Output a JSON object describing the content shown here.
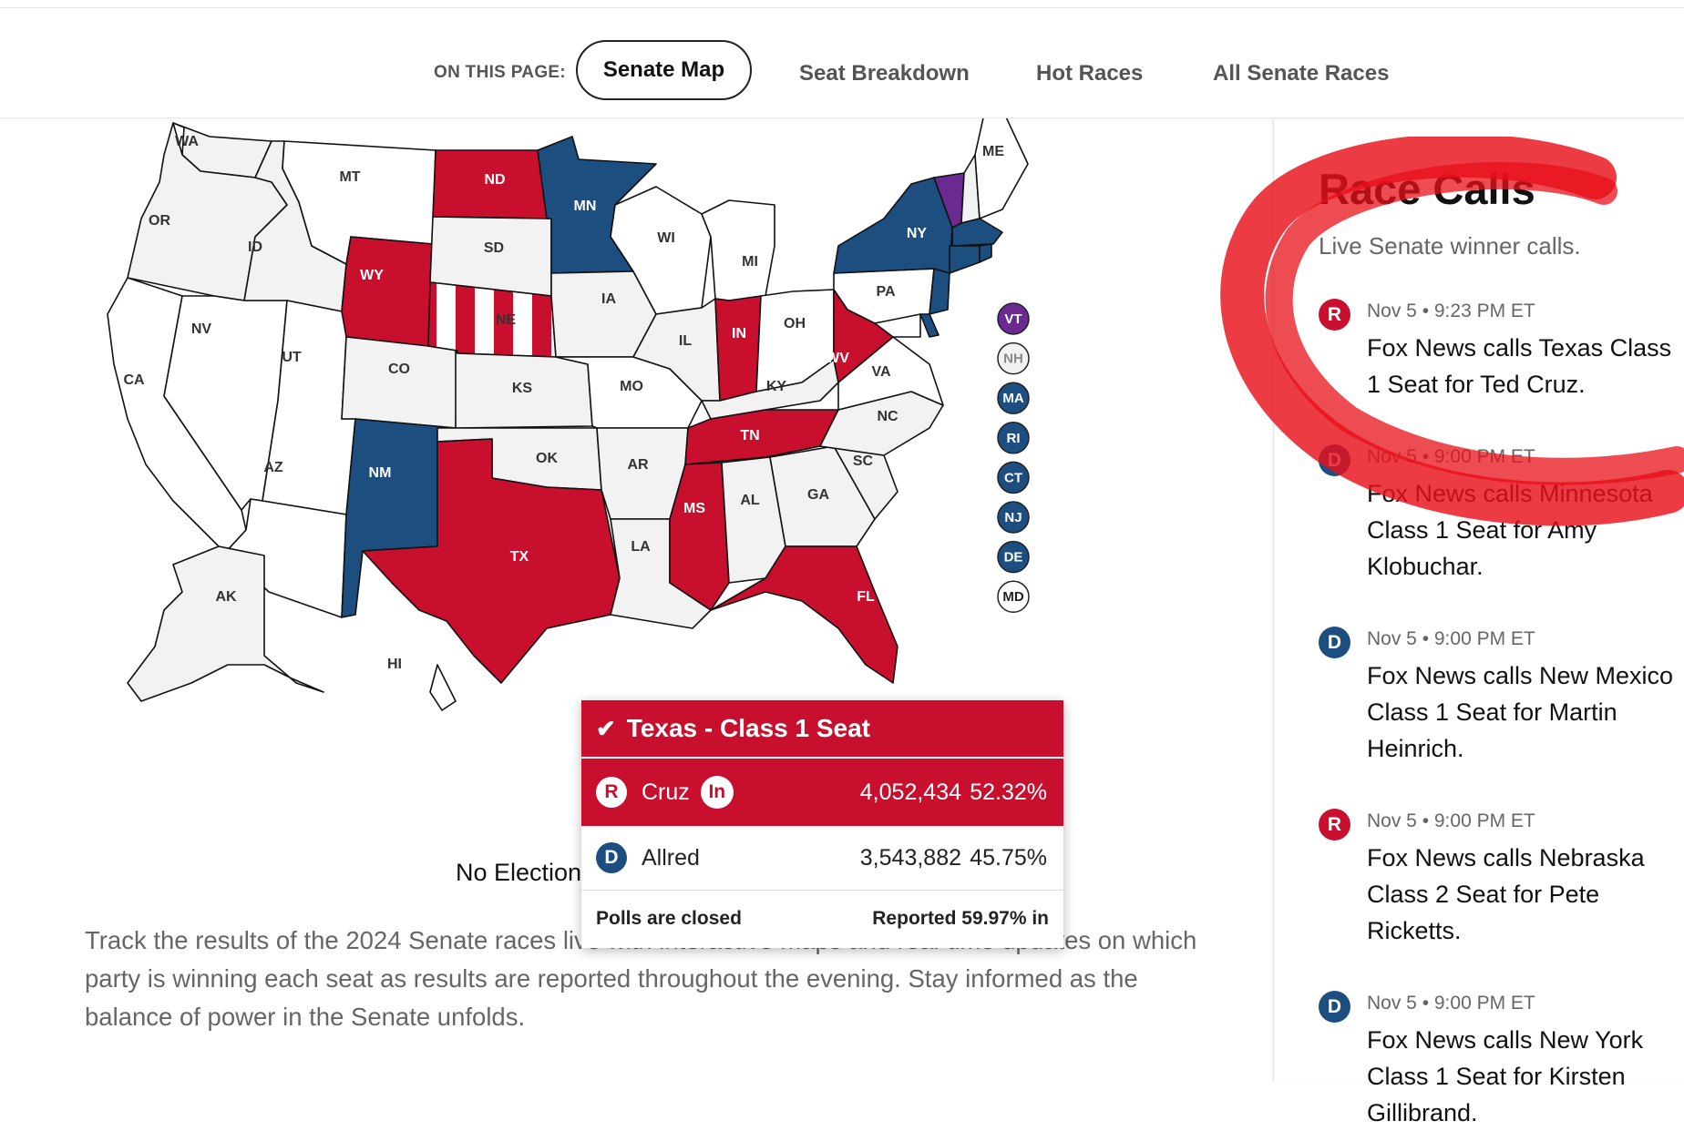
{
  "nav": {
    "label": "ON THIS PAGE:",
    "items": [
      "Senate Map",
      "Seat Breakdown",
      "Hot Races",
      "All Senate Races"
    ],
    "active": "Senate Map"
  },
  "colors": {
    "republican": "#c8102e",
    "democrat": "#1d4e80",
    "independent": "#6a2a91",
    "no_election": "#f2f2f2",
    "not_called": "#ffffff"
  },
  "map": {
    "states": [
      {
        "abbr": "WA",
        "status": "no-election"
      },
      {
        "abbr": "OR",
        "status": "no-election"
      },
      {
        "abbr": "CA",
        "status": "not-called"
      },
      {
        "abbr": "ID",
        "status": "no-election"
      },
      {
        "abbr": "NV",
        "status": "not-called"
      },
      {
        "abbr": "MT",
        "status": "not-called"
      },
      {
        "abbr": "WY",
        "status": "republican"
      },
      {
        "abbr": "UT",
        "status": "not-called"
      },
      {
        "abbr": "AZ",
        "status": "not-called"
      },
      {
        "abbr": "CO",
        "status": "no-election"
      },
      {
        "abbr": "NM",
        "status": "democrat"
      },
      {
        "abbr": "ND",
        "status": "republican"
      },
      {
        "abbr": "SD",
        "status": "no-election"
      },
      {
        "abbr": "NE",
        "status": "republican-partial"
      },
      {
        "abbr": "KS",
        "status": "no-election"
      },
      {
        "abbr": "OK",
        "status": "no-election"
      },
      {
        "abbr": "TX",
        "status": "republican"
      },
      {
        "abbr": "MN",
        "status": "democrat"
      },
      {
        "abbr": "IA",
        "status": "no-election"
      },
      {
        "abbr": "MO",
        "status": "not-called"
      },
      {
        "abbr": "AR",
        "status": "no-election"
      },
      {
        "abbr": "LA",
        "status": "no-election"
      },
      {
        "abbr": "WI",
        "status": "not-called"
      },
      {
        "abbr": "IL",
        "status": "no-election"
      },
      {
        "abbr": "MI",
        "status": "not-called"
      },
      {
        "abbr": "IN",
        "status": "republican"
      },
      {
        "abbr": "OH",
        "status": "not-called"
      },
      {
        "abbr": "KY",
        "status": "no-election"
      },
      {
        "abbr": "TN",
        "status": "republican"
      },
      {
        "abbr": "MS",
        "status": "republican"
      },
      {
        "abbr": "AL",
        "status": "no-election"
      },
      {
        "abbr": "GA",
        "status": "no-election"
      },
      {
        "abbr": "FL",
        "status": "republican"
      },
      {
        "abbr": "SC",
        "status": "no-election"
      },
      {
        "abbr": "NC",
        "status": "no-election"
      },
      {
        "abbr": "VA",
        "status": "not-called"
      },
      {
        "abbr": "WV",
        "status": "republican"
      },
      {
        "abbr": "PA",
        "status": "not-called"
      },
      {
        "abbr": "NY",
        "status": "democrat"
      },
      {
        "abbr": "ME",
        "status": "not-called"
      },
      {
        "abbr": "AK",
        "status": "no-election"
      },
      {
        "abbr": "HI",
        "status": "not-called"
      }
    ],
    "small_states": [
      {
        "abbr": "VT",
        "status": "independent"
      },
      {
        "abbr": "NH",
        "status": "no-election"
      },
      {
        "abbr": "MA",
        "status": "democrat"
      },
      {
        "abbr": "RI",
        "status": "democrat"
      },
      {
        "abbr": "CT",
        "status": "democrat"
      },
      {
        "abbr": "NJ",
        "status": "democrat"
      },
      {
        "abbr": "DE",
        "status": "democrat"
      },
      {
        "abbr": "MD",
        "status": "not-called"
      }
    ],
    "legend_partial": "No Election"
  },
  "description": "Track the results of the 2024 Senate races live with interactive maps and real-time updates on which party is winning each seat as results are reported throughout the evening. Stay informed as the balance of power in the Senate unfolds.",
  "tooltip": {
    "title": "Texas - Class 1 Seat",
    "candidates": [
      {
        "party": "R",
        "name": "Cruz",
        "incumbent": "In",
        "votes": "4,052,434",
        "pct": "52.32%",
        "winner": true
      },
      {
        "party": "D",
        "name": "Allred",
        "votes": "3,543,882",
        "pct": "45.75%",
        "winner": false
      }
    ],
    "status": "Polls are closed",
    "reported": "Reported 59.97% in"
  },
  "race_calls": {
    "title": "Race Calls",
    "subtitle": "Live Senate winner calls.",
    "items": [
      {
        "party": "R",
        "time": "Nov 5 • 9:23 PM ET",
        "text": "Fox News calls Texas Class 1 Seat for Ted Cruz."
      },
      {
        "party": "D",
        "time": "Nov 5 • 9:00 PM ET",
        "text": "Fox News calls Minnesota Class 1 Seat for Amy Klobuchar."
      },
      {
        "party": "D",
        "time": "Nov 5 • 9:00 PM ET",
        "text": "Fox News calls New Mexico Class 1 Seat for Martin Heinrich."
      },
      {
        "party": "R",
        "time": "Nov 5 • 9:00 PM ET",
        "text": "Fox News calls Nebraska Class 2 Seat for Pete Ricketts."
      },
      {
        "party": "D",
        "time": "Nov 5 • 9:00 PM ET",
        "text": "Fox News calls New York Class 1 Seat for Kirsten Gillibrand."
      }
    ]
  }
}
